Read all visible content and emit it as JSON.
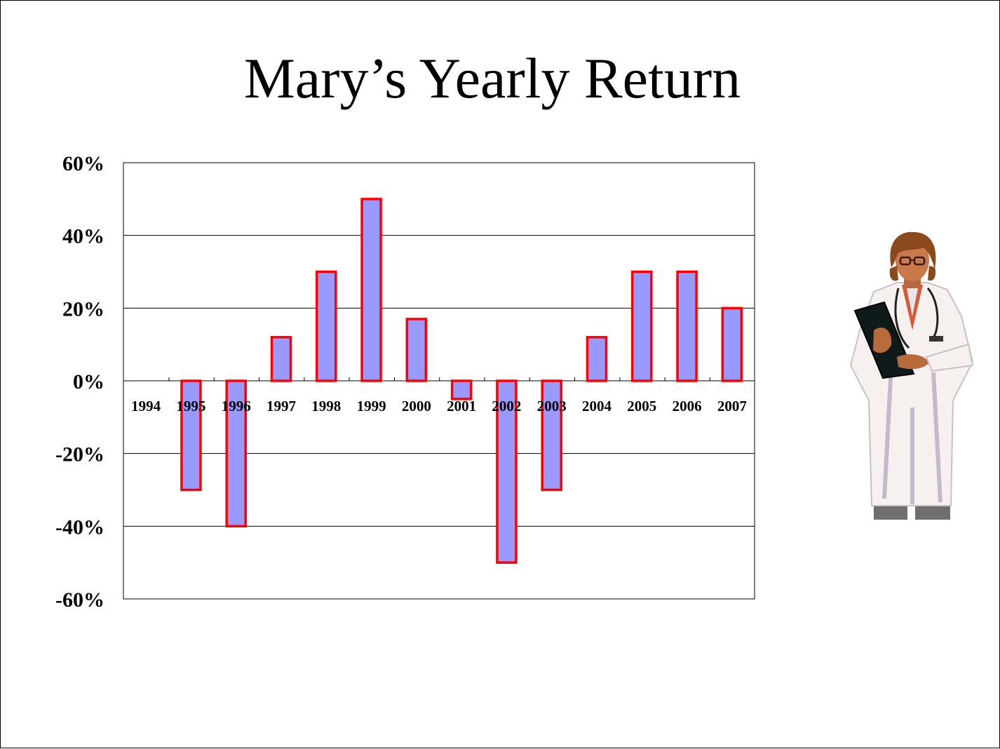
{
  "title": "Mary’s Yearly Return",
  "chart_data": {
    "type": "bar",
    "title": "Mary’s Yearly Return",
    "categories": [
      "1994",
      "1995",
      "1996",
      "1997",
      "1998",
      "1999",
      "2000",
      "2001",
      "2002",
      "2003",
      "2004",
      "2005",
      "2006",
      "2007"
    ],
    "series": [
      {
        "values": [
          null,
          -30,
          -40,
          12,
          30,
          50,
          17,
          -5,
          -50,
          -30,
          12,
          30,
          30,
          20
        ]
      }
    ],
    "yticks": [
      "60%",
      "40%",
      "20%",
      "0%",
      "-20%",
      "-40%",
      "-60%"
    ],
    "ylim": [
      -60,
      60
    ],
    "grid": true,
    "colors": {
      "bar_fill": "#9999ff",
      "bar_stroke": "#ff0000"
    }
  },
  "illustration": {
    "icon": "doctor-illustration"
  }
}
